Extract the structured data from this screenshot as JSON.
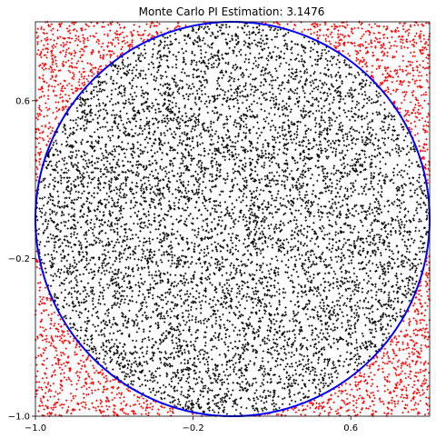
{
  "chart_data": {
    "type": "scatter",
    "title": "Monte Carlo PI Estimation: 3.1476",
    "xlabel": "",
    "ylabel": "",
    "xlim": [
      -1.0,
      1.0
    ],
    "ylim": [
      -1.0,
      1.0
    ],
    "xticks": [
      -1.0,
      -0.2,
      0.6
    ],
    "xtick_labels": [
      "−1.0",
      "−0.2",
      "0.6"
    ],
    "yticks": [
      -1.0,
      -0.2,
      0.6
    ],
    "ytick_labels": [
      "−1.0",
      "−0.2",
      "0.6"
    ],
    "grid": false,
    "legend": "none",
    "point_count": 10000,
    "pi_estimate": 3.1476,
    "series": [
      {
        "role": "inside",
        "color": "#000000",
        "marker": "+"
      },
      {
        "role": "outside",
        "color": "#ff0000",
        "marker": "+"
      }
    ],
    "circle": {
      "center": [
        0,
        0
      ],
      "radius": 1.0,
      "color": "#0000ff"
    }
  }
}
